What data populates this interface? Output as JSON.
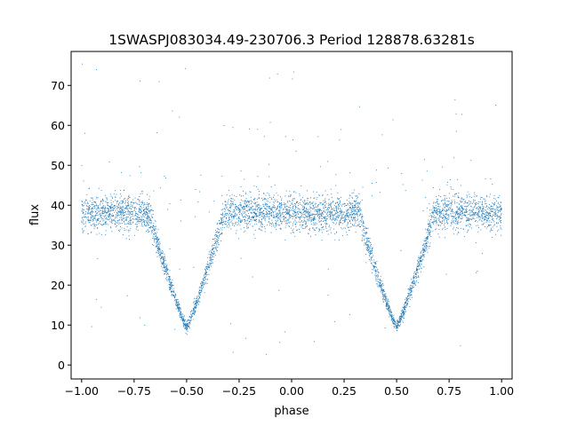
{
  "chart_data": {
    "type": "scatter",
    "title": "1SWASPJ083034.49-230706.3 Period 128878.63281s",
    "xlabel": "phase",
    "ylabel": "flux",
    "xlim": [
      -1.05,
      1.05
    ],
    "ylim": [
      -3.5,
      78.5
    ],
    "xticks": [
      -1.0,
      -0.75,
      -0.5,
      -0.25,
      0.0,
      0.25,
      0.5,
      0.75,
      1.0
    ],
    "xtick_labels": [
      "−1.00",
      "−0.75",
      "−0.50",
      "−0.25",
      "0.00",
      "0.25",
      "0.50",
      "0.75",
      "1.00"
    ],
    "yticks": [
      0,
      10,
      20,
      30,
      40,
      50,
      60,
      70
    ],
    "ytick_labels": [
      "0",
      "10",
      "20",
      "30",
      "40",
      "50",
      "60",
      "70"
    ],
    "grid": false,
    "marker_color": "#1f77b4",
    "light_curve_model": {
      "baseline_flux": 38,
      "scatter": 2.2,
      "eclipse_centers": [
        -0.5,
        0.5
      ],
      "eclipse_half_width": 0.18,
      "eclipse_min_flux": 9.5,
      "eclipse_scatter": 0.6,
      "outlier_flux_range": [
        1,
        76
      ]
    },
    "series": [
      {
        "type": "scatter",
        "color": "#1f77b4"
      }
    ]
  }
}
